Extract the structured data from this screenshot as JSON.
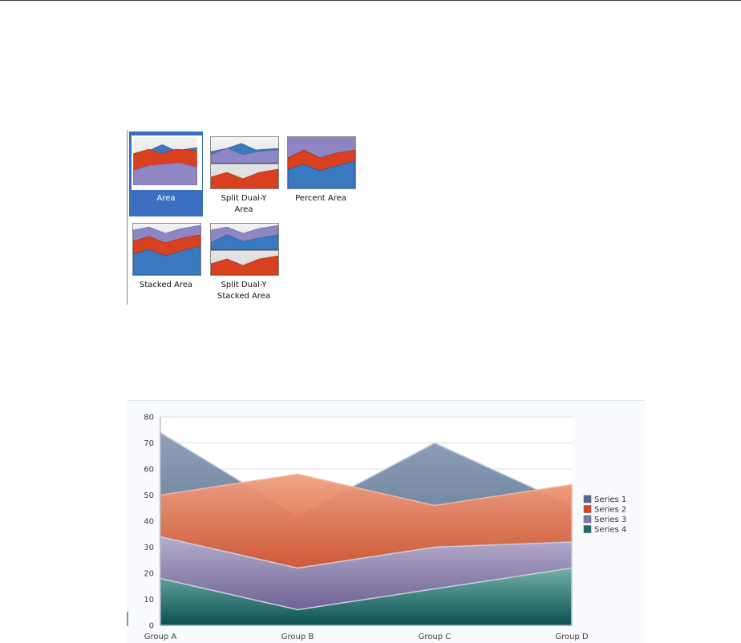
{
  "gallery": {
    "items": [
      {
        "label": "Area",
        "selected": true
      },
      {
        "label": "Split Dual-Y\nArea",
        "selected": false
      },
      {
        "label": "Percent Area",
        "selected": false
      },
      {
        "label": "Stacked Area",
        "selected": false
      },
      {
        "label": "Split Dual-Y\nStacked Area",
        "selected": false
      }
    ]
  },
  "colors": {
    "series1": "#4d6a8c",
    "series2": "#d34a22",
    "series3": "#7c78b0",
    "series4": "#1c6e6a",
    "selection": "#3a6fc2"
  },
  "chart_data": {
    "type": "area",
    "categories": [
      "Group A",
      "Group B",
      "Group C",
      "Group D"
    ],
    "series": [
      {
        "name": "Series 1",
        "values": [
          74,
          42,
          70,
          46
        ]
      },
      {
        "name": "Series 2",
        "values": [
          50,
          58,
          46,
          54
        ]
      },
      {
        "name": "Series 3",
        "values": [
          34,
          22,
          30,
          32
        ]
      },
      {
        "name": "Series 4",
        "values": [
          18,
          6,
          14,
          22
        ]
      }
    ],
    "ylim": [
      0,
      80
    ],
    "yticks": [
      0,
      10,
      20,
      30,
      40,
      50,
      60,
      70,
      80
    ],
    "grid": true,
    "legend_position": "right"
  }
}
